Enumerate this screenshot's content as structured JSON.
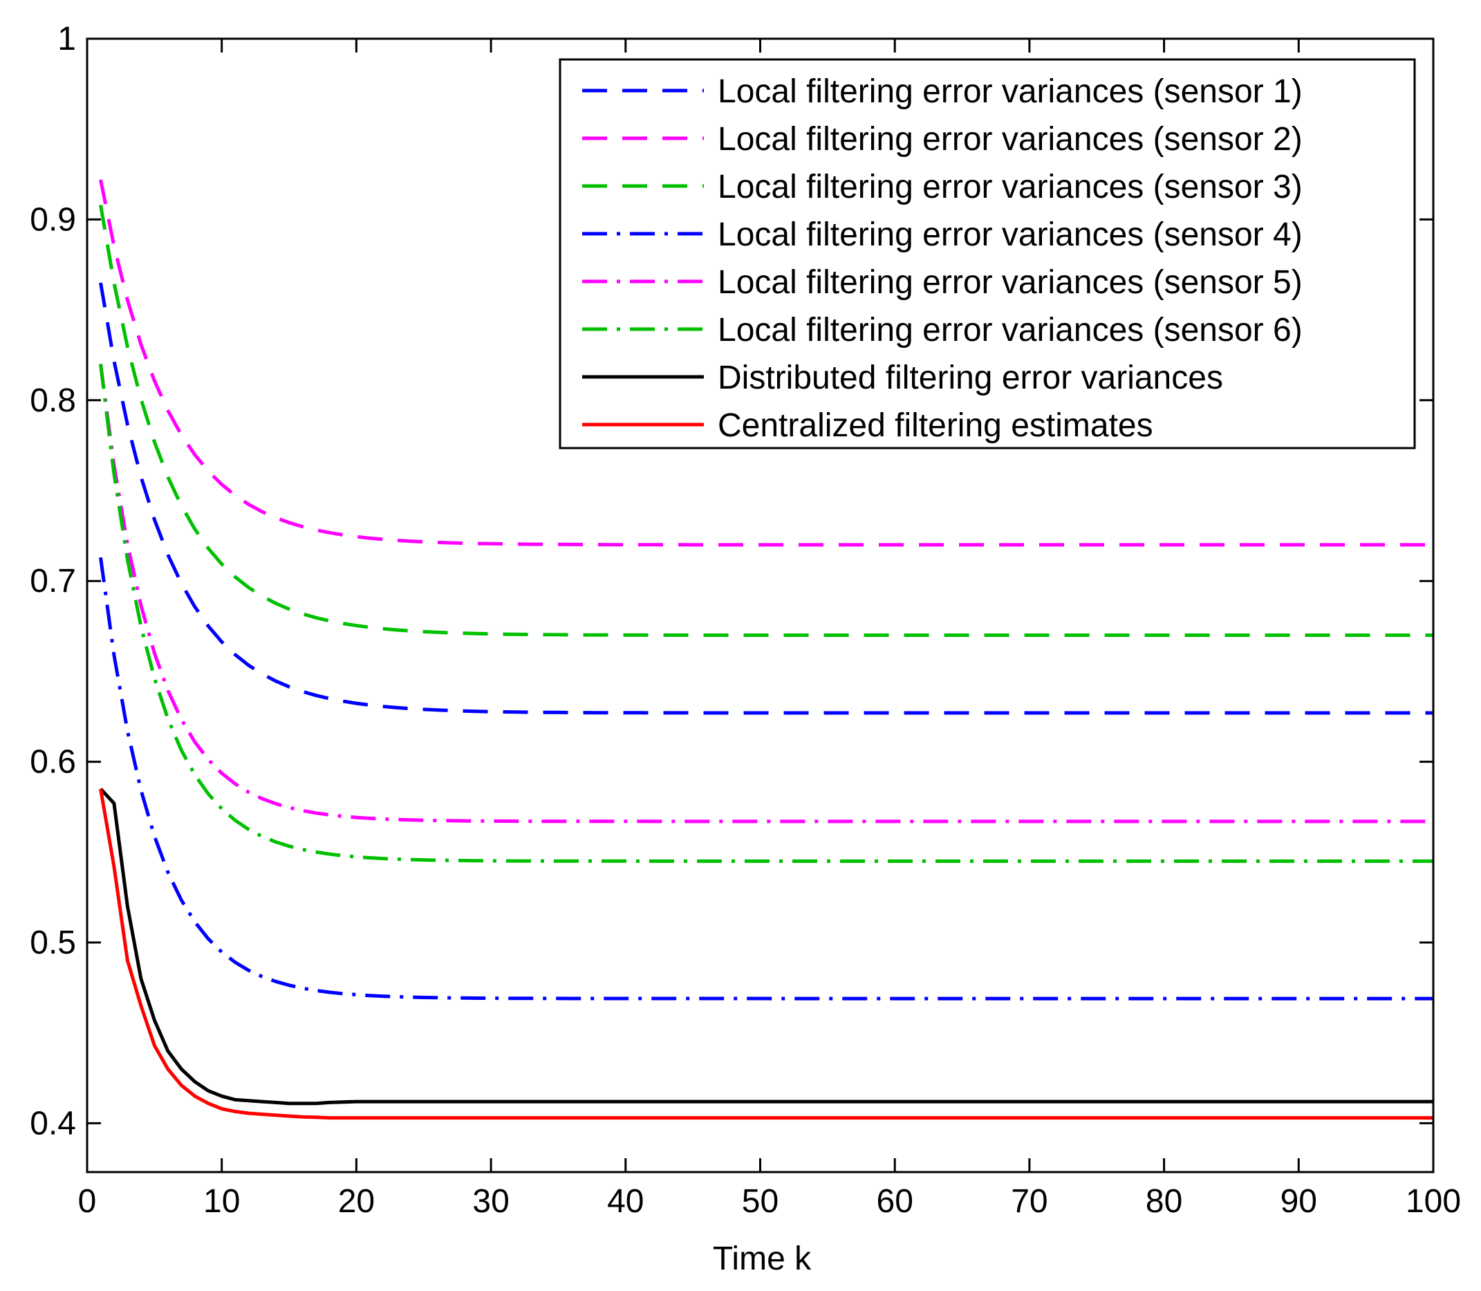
{
  "chart_data": {
    "type": "line",
    "title": "",
    "xlabel": "Time k",
    "ylabel": "",
    "xlim": [
      0,
      100
    ],
    "ylim": [
      0.373,
      1.0
    ],
    "x_ticks": [
      0,
      10,
      20,
      30,
      40,
      50,
      60,
      70,
      80,
      90,
      100
    ],
    "x_tick_labels": [
      "0",
      "10",
      "20",
      "30",
      "40",
      "50",
      "60",
      "70",
      "80",
      "90",
      "100"
    ],
    "y_ticks": [
      0.4,
      0.5,
      0.6,
      0.7,
      0.8,
      0.9,
      1.0
    ],
    "y_tick_labels": [
      "0.4",
      "0.5",
      "0.6",
      "0.7",
      "0.8",
      "0.9",
      "1"
    ],
    "grid": false,
    "legend_position": "top-right",
    "series": [
      {
        "name": "Local filtering error variances (sensor 1)",
        "color": "#0000ff",
        "style": "dashed",
        "start_x": 1,
        "start": 0.865,
        "end": 0.627,
        "decay_rate": 0.2
      },
      {
        "name": "Local filtering error variances (sensor 2)",
        "color": "#ff00ff",
        "style": "dashed",
        "start_x": 1,
        "start": 0.922,
        "end": 0.72,
        "decay_rate": 0.2
      },
      {
        "name": "Local filtering error variances (sensor 3)",
        "color": "#00c000",
        "style": "dashed",
        "start_x": 1,
        "start": 0.908,
        "end": 0.67,
        "decay_rate": 0.2
      },
      {
        "name": "Local filtering error variances (sensor 4)",
        "color": "#0000ff",
        "style": "dashdot",
        "start_x": 1,
        "start": 0.713,
        "end": 0.469,
        "decay_rate": 0.25
      },
      {
        "name": "Local filtering error variances (sensor 5)",
        "color": "#ff00ff",
        "style": "dashdot",
        "start_x": 1,
        "start": 0.82,
        "end": 0.567,
        "decay_rate": 0.25
      },
      {
        "name": "Local filtering error variances (sensor 6)",
        "color": "#00c000",
        "style": "dashdot",
        "start_x": 1,
        "start": 0.82,
        "end": 0.545,
        "decay_rate": 0.25
      },
      {
        "name": "Distributed filtering error variances",
        "color": "#000000",
        "style": "solid",
        "x": [
          1,
          2,
          3,
          4,
          5,
          6,
          7,
          8,
          9,
          10,
          11,
          12,
          13,
          14,
          15,
          16,
          17,
          18,
          20,
          25,
          30,
          40,
          50,
          60,
          70,
          80,
          90,
          100
        ],
        "values": [
          0.585,
          0.577,
          0.52,
          0.48,
          0.457,
          0.44,
          0.43,
          0.423,
          0.418,
          0.415,
          0.413,
          0.4125,
          0.412,
          0.4115,
          0.411,
          0.411,
          0.411,
          0.4115,
          0.412,
          0.412,
          0.412,
          0.412,
          0.412,
          0.412,
          0.412,
          0.412,
          0.412,
          0.412
        ]
      },
      {
        "name": "Centralized filtering estimates",
        "color": "#ff0000",
        "style": "solid",
        "x": [
          1,
          2,
          3,
          4,
          5,
          6,
          7,
          8,
          9,
          10,
          11,
          12,
          13,
          14,
          15,
          16,
          17,
          18,
          20,
          25,
          30,
          40,
          50,
          60,
          70,
          80,
          90,
          100
        ],
        "values": [
          0.585,
          0.542,
          0.49,
          0.465,
          0.443,
          0.43,
          0.421,
          0.415,
          0.411,
          0.408,
          0.4065,
          0.4055,
          0.405,
          0.4045,
          0.404,
          0.4035,
          0.4033,
          0.403,
          0.403,
          0.403,
          0.403,
          0.403,
          0.403,
          0.403,
          0.403,
          0.403,
          0.403,
          0.403
        ]
      }
    ]
  }
}
